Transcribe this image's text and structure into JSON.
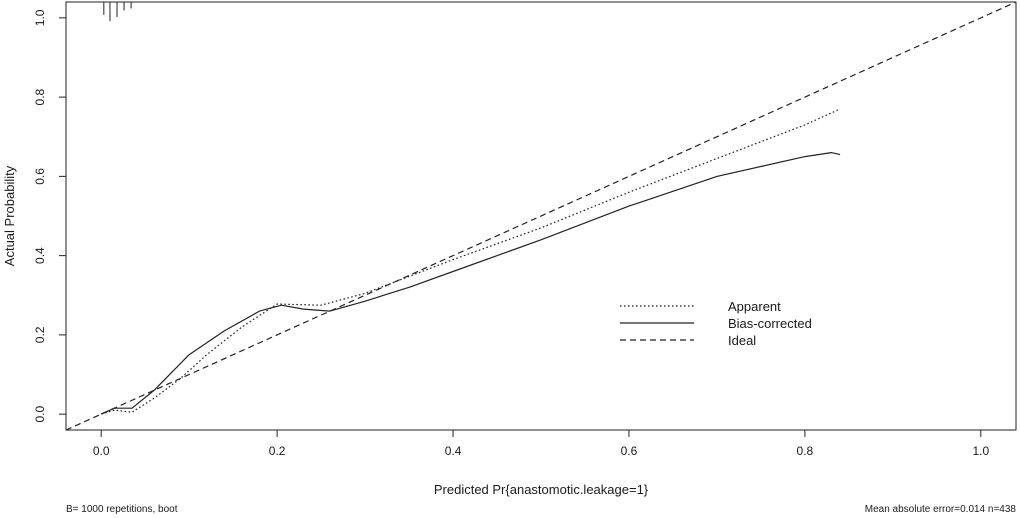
{
  "chart_data": {
    "type": "line",
    "xlabel": "Predicted Pr{anastomotic.leakage=1}",
    "ylabel": "Actual Probability",
    "xlim": [
      -0.04,
      1.04
    ],
    "ylim": [
      -0.04,
      1.04
    ],
    "x_ticks": [
      "0.0",
      "0.2",
      "0.4",
      "0.6",
      "0.8",
      "1.0"
    ],
    "y_ticks": [
      "0.0",
      "0.2",
      "0.4",
      "0.6",
      "0.8",
      "1.0"
    ],
    "grid": false,
    "legend_position": "center-right",
    "series": [
      {
        "name": "Apparent",
        "style": "dotted",
        "color": "#222222",
        "x": [
          0.0,
          0.015,
          0.035,
          0.06,
          0.09,
          0.12,
          0.16,
          0.2,
          0.25,
          0.3,
          0.4,
          0.5,
          0.6,
          0.7,
          0.8,
          0.84
        ],
        "y": [
          0.0,
          0.01,
          0.005,
          0.04,
          0.09,
          0.15,
          0.22,
          0.278,
          0.275,
          0.305,
          0.39,
          0.47,
          0.56,
          0.645,
          0.73,
          0.77
        ]
      },
      {
        "name": "Bias-corrected",
        "style": "solid",
        "color": "#222222",
        "x": [
          0.0,
          0.015,
          0.035,
          0.06,
          0.1,
          0.14,
          0.18,
          0.205,
          0.23,
          0.26,
          0.3,
          0.35,
          0.4,
          0.5,
          0.6,
          0.7,
          0.8,
          0.83,
          0.84
        ],
        "y": [
          0.0,
          0.015,
          0.015,
          0.06,
          0.15,
          0.21,
          0.26,
          0.275,
          0.265,
          0.26,
          0.285,
          0.32,
          0.36,
          0.44,
          0.525,
          0.6,
          0.65,
          0.66,
          0.655
        ]
      },
      {
        "name": "Ideal",
        "style": "dashed",
        "color": "#222222",
        "x": [
          -0.04,
          1.04
        ],
        "y": [
          -0.04,
          1.04
        ]
      }
    ],
    "rug_x": [
      0.003,
      0.01,
      0.018,
      0.026,
      0.034
    ],
    "rug_heights": [
      0.03,
      0.045,
      0.035,
      0.02,
      0.015
    ],
    "footnote_left": "B= 1000 repetitions, boot",
    "footnote_right": "Mean absolute error=0.014 n=438"
  }
}
